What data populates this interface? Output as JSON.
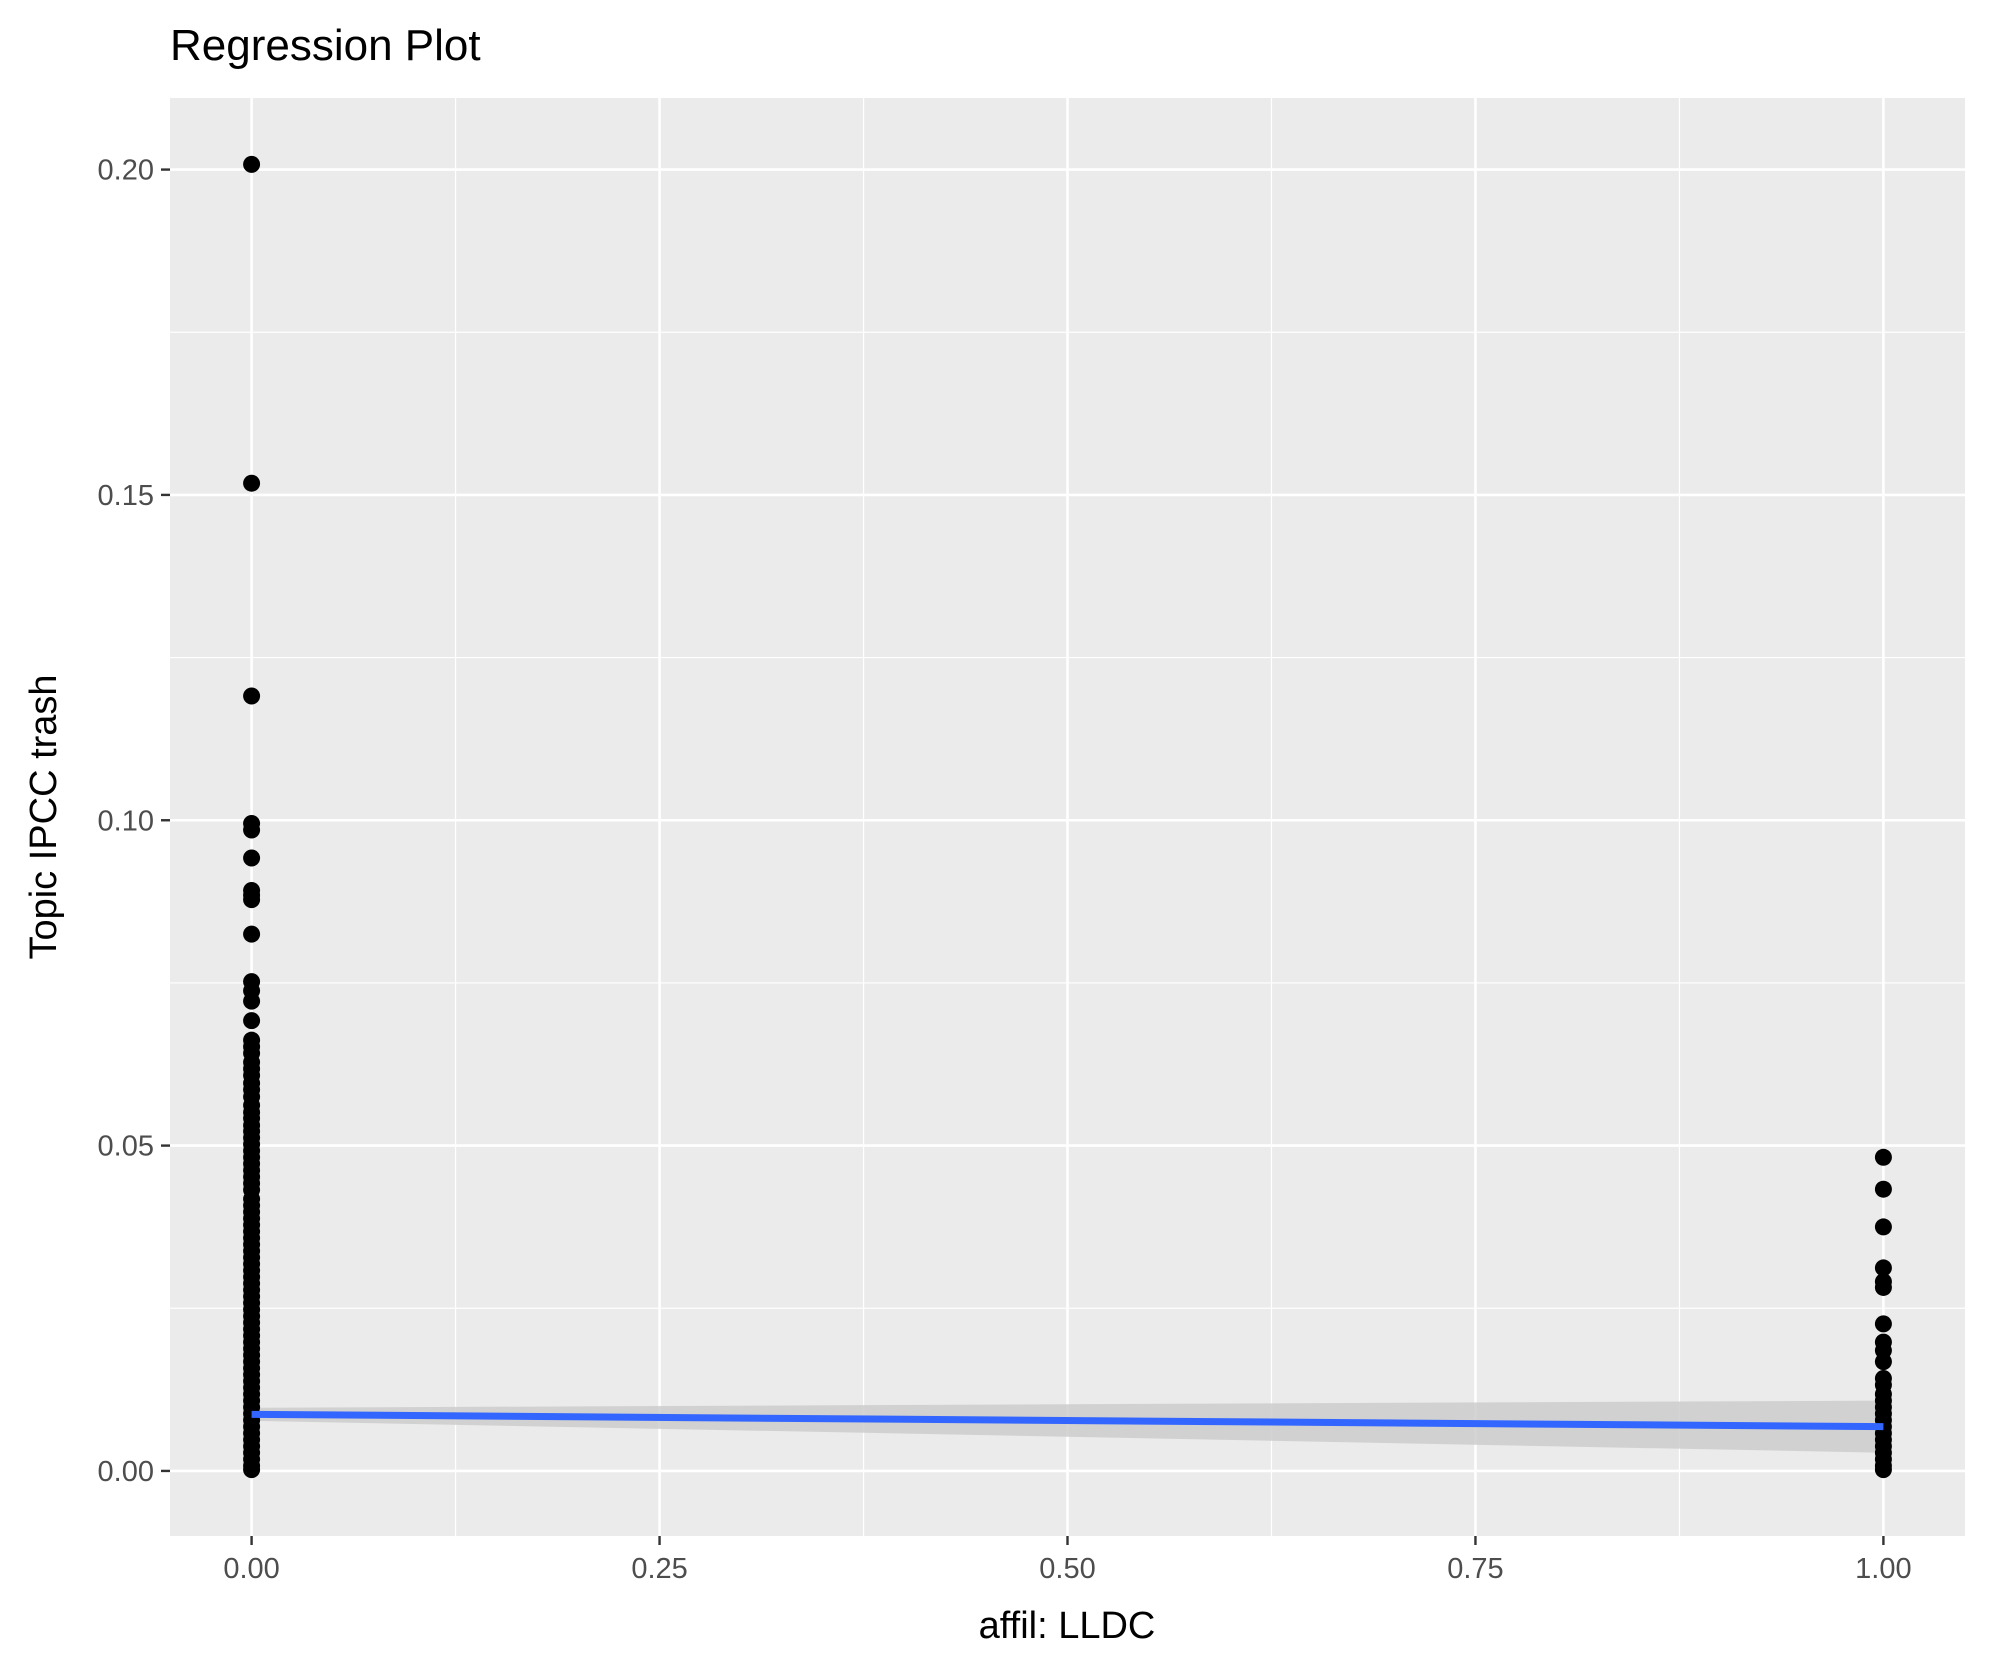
{
  "chart_data": {
    "type": "scatter",
    "title": "Regression Plot",
    "xlabel": "affil: LLDC",
    "ylabel": "Topic IPCC trash",
    "xlim": [
      -0.05,
      1.05
    ],
    "ylim": [
      -0.01,
      0.211
    ],
    "x_ticks": [
      0.0,
      0.25,
      0.5,
      0.75,
      1.0
    ],
    "x_tick_labels": [
      "0.00",
      "0.25",
      "0.50",
      "0.75",
      "1.00"
    ],
    "y_ticks": [
      0.0,
      0.05,
      0.1,
      0.15,
      0.2
    ],
    "y_tick_labels": [
      "0.00",
      "0.05",
      "0.10",
      "0.15",
      "0.20"
    ],
    "grid": true,
    "legend": "none",
    "points": {
      "color": "#000000",
      "groups": [
        {
          "x": 0.0,
          "y": [
            0.2008,
            0.1518,
            0.1191,
            0.0995,
            0.0985,
            0.0942,
            0.0892,
            0.0885,
            0.0878,
            0.0825,
            0.0752,
            0.0738,
            0.0722,
            0.0692,
            0.0662,
            0.0652,
            0.0642,
            0.0628,
            0.0618,
            0.0608,
            0.0596,
            0.0586,
            0.0575,
            0.0562,
            0.0551,
            0.0542,
            0.0531,
            0.0522,
            0.0512,
            0.0502,
            0.0492,
            0.0482,
            0.0472,
            0.0462,
            0.0452,
            0.0442,
            0.0432,
            0.0418,
            0.0408,
            0.0398,
            0.0388,
            0.0378,
            0.0368,
            0.0358,
            0.0348,
            0.0338,
            0.0328,
            0.0318,
            0.0308,
            0.0298,
            0.0288,
            0.0278,
            0.0268,
            0.0258,
            0.0248,
            0.0238,
            0.0228,
            0.0218,
            0.0208,
            0.0198,
            0.0188,
            0.0178,
            0.0168,
            0.0158,
            0.0148,
            0.0138,
            0.0128,
            0.0118,
            0.0108,
            0.0098,
            0.0088,
            0.0078,
            0.0068,
            0.0058,
            0.0048,
            0.0038,
            0.0028,
            0.0018,
            0.0008,
            0.0002
          ]
        },
        {
          "x": 1.0,
          "y": [
            0.0482,
            0.0433,
            0.0375,
            0.0312,
            0.0291,
            0.0282,
            0.0226,
            0.0198,
            0.0185,
            0.0168,
            0.0142,
            0.0132,
            0.0118,
            0.0108,
            0.0098,
            0.0088,
            0.0078,
            0.0068,
            0.0058,
            0.0048,
            0.0038,
            0.0028,
            0.0018,
            0.0008,
            0.0002
          ]
        }
      ]
    },
    "regression": {
      "color": "#3366ff",
      "x": [
        0.0,
        1.0
      ],
      "y": [
        0.0087,
        0.0068
      ],
      "ci_lower": [
        0.0077,
        0.0028
      ],
      "ci_upper": [
        0.0097,
        0.0108
      ],
      "ci_color": "#cccccc"
    }
  }
}
